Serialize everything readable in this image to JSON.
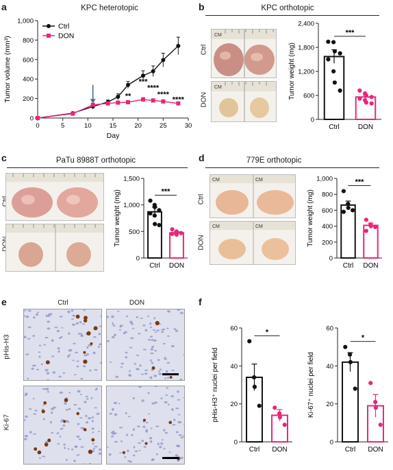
{
  "colors": {
    "ctrl": "#111111",
    "don": "#e8267a",
    "arrow": "#4a6d8c"
  },
  "panels": {
    "a": {
      "letter": "a",
      "title": "KPC heterotopic"
    },
    "b": {
      "letter": "b",
      "title": "KPC orthotopic",
      "row_labels": [
        "Ctrl",
        "DON"
      ]
    },
    "c": {
      "letter": "c",
      "title": "PaTu 8988T orthotopic",
      "row_labels": [
        "Ctrl",
        "DON"
      ]
    },
    "d": {
      "letter": "d",
      "title": "779E orthotopic",
      "row_labels": [
        "Ctrl",
        "DON"
      ]
    },
    "e": {
      "letter": "e",
      "col_labels": [
        "Ctrl",
        "DON"
      ],
      "row_labels": [
        "pHis-H3",
        "Ki-67"
      ]
    },
    "f": {
      "letter": "f"
    }
  },
  "chart_data": [
    {
      "id": "a",
      "type": "line",
      "title": "KPC heterotopic",
      "xlabel": "Day",
      "ylabel": "Tumor volume (mm³)",
      "xlim": [
        0,
        30
      ],
      "ylim": [
        0,
        1000
      ],
      "xticks": [
        0,
        5,
        10,
        15,
        20,
        25,
        30
      ],
      "yticks": [
        0,
        200,
        400,
        600,
        800,
        1000
      ],
      "ytick_labels": [
        "0",
        "200",
        "400",
        "600",
        "800",
        "1,000"
      ],
      "legend": [
        "Ctrl",
        "DON"
      ],
      "legend_position": "top-left",
      "arrow_at_day": 11,
      "series": [
        {
          "name": "Ctrl",
          "x": [
            0,
            7,
            11,
            14,
            16,
            18,
            21,
            23,
            25,
            28
          ],
          "y": [
            0,
            50,
            118,
            165,
            218,
            340,
            435,
            480,
            595,
            740
          ],
          "err": [
            0,
            10,
            25,
            20,
            30,
            35,
            50,
            55,
            70,
            90
          ]
        },
        {
          "name": "DON",
          "x": [
            0,
            7,
            11,
            14,
            16,
            18,
            21,
            23,
            25,
            28
          ],
          "y": [
            0,
            45,
            135,
            150,
            158,
            162,
            190,
            180,
            170,
            150
          ],
          "err": [
            0,
            8,
            15,
            12,
            15,
            15,
            20,
            18,
            18,
            15
          ]
        }
      ],
      "annotations": [
        {
          "text": "**",
          "x": 18,
          "y": 200
        },
        {
          "text": "***",
          "x": 21,
          "y": 350
        },
        {
          "text": "****",
          "x": 23,
          "y": 285
        },
        {
          "text": "****",
          "x": 25,
          "y": 220
        },
        {
          "text": "****",
          "x": 28,
          "y": 165
        }
      ]
    },
    {
      "id": "b",
      "type": "bar",
      "categories": [
        "Ctrl",
        "DON"
      ],
      "values": [
        1570,
        560
      ],
      "errors": [
        170,
        45
      ],
      "points": [
        [
          1940,
          1930,
          1700,
          1650,
          1500,
          1200,
          920,
          720
        ],
        [
          720,
          650,
          600,
          560,
          520,
          480,
          420,
          400
        ]
      ],
      "ylabel": "Tumor weight (mg)",
      "ylim": [
        0,
        2400
      ],
      "yticks": [
        0,
        600,
        1200,
        1800,
        2400
      ],
      "ytick_labels": [
        "0",
        "600",
        "1,200",
        "1,800",
        "2,400"
      ],
      "significance": "***"
    },
    {
      "id": "c",
      "type": "bar",
      "categories": [
        "Ctrl",
        "DON"
      ],
      "values": [
        870,
        475
      ],
      "errors": [
        90,
        25
      ],
      "points": [
        [
          1080,
          1000,
          960,
          900,
          840,
          800,
          640,
          620
        ],
        [
          540,
          500,
          480,
          470,
          455,
          440
        ]
      ],
      "ylabel": "Tumor weight (mg)",
      "ylim": [
        0,
        1500
      ],
      "yticks": [
        0,
        500,
        1000,
        1500
      ],
      "ytick_labels": [
        "0",
        "500",
        "1,000",
        "1,500"
      ],
      "significance": "***"
    },
    {
      "id": "d",
      "type": "bar",
      "categories": [
        "Ctrl",
        "DON"
      ],
      "values": [
        665,
        410
      ],
      "errors": [
        50,
        30
      ],
      "points": [
        [
          840,
          680,
          630,
          600,
          580
        ],
        [
          480,
          420,
          400,
          390,
          340
        ]
      ],
      "ylabel": "Tumor weight (mg)",
      "ylim": [
        0,
        1000
      ],
      "yticks": [
        0,
        200,
        400,
        600,
        800,
        1000
      ],
      "ytick_labels": [
        "0",
        "200",
        "400",
        "600",
        "800",
        "1,000"
      ],
      "significance": "***"
    },
    {
      "id": "f1",
      "type": "bar",
      "categories": [
        "Ctrl",
        "DON"
      ],
      "values": [
        34,
        14
      ],
      "errors": [
        7,
        3
      ],
      "points": [
        [
          53,
          34,
          29,
          19
        ],
        [
          18,
          15,
          13,
          9
        ]
      ],
      "ylabel": "pHis-H3⁺ nuclei per field",
      "ylim": [
        0,
        60
      ],
      "yticks": [
        0,
        20,
        40,
        60
      ],
      "ytick_labels": [
        "0",
        "20",
        "40",
        "60"
      ],
      "significance": "*"
    },
    {
      "id": "f2",
      "type": "bar",
      "categories": [
        "Ctrl",
        "DON"
      ],
      "values": [
        42,
        19
      ],
      "errors": [
        5,
        6
      ],
      "points": [
        [
          50,
          46,
          42,
          28
        ],
        [
          31,
          21,
          18,
          9
        ]
      ],
      "ylabel": "Ki-67⁺ nuclei per field",
      "ylim": [
        0,
        60
      ],
      "yticks": [
        0,
        20,
        40,
        60
      ],
      "ytick_labels": [
        "0",
        "20",
        "40",
        "60"
      ],
      "significance": "*"
    }
  ]
}
